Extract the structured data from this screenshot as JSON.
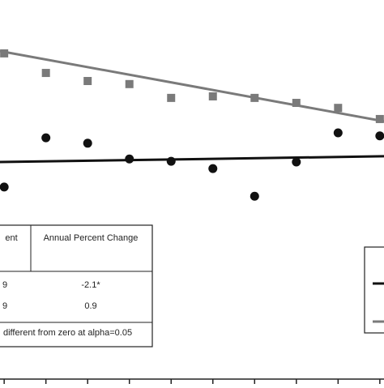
{
  "chart_data": {
    "type": "scatter",
    "x": [
      1,
      2,
      3,
      4,
      5,
      6,
      7,
      8,
      9,
      10
    ],
    "xlim": [
      0.9,
      10.1
    ],
    "xticks": [
      1,
      2,
      3,
      4,
      5,
      6,
      7,
      8,
      9,
      10
    ],
    "ylim": [
      0,
      100
    ],
    "series": [
      {
        "color": "#7a7a7a",
        "marker": "square",
        "values": [
          86.1,
          81.0,
          78.9,
          78.1,
          74.5,
          74.9,
          74.5,
          73.2,
          71.9,
          69.0
        ],
        "trend_x": [
          0.9,
          10.1
        ],
        "trend": [
          86.7,
          68.4
        ]
      },
      {
        "color": "#111111",
        "marker": "circle",
        "values": [
          51.3,
          64.1,
          62.7,
          58.6,
          58.0,
          56.1,
          48.9,
          57.8,
          65.4,
          64.6
        ],
        "trend_x": [
          0.9,
          10.1
        ],
        "trend": [
          57.8,
          59.3
        ]
      }
    ]
  },
  "table": {
    "header": [
      "ent",
      "Annual Percent Change"
    ],
    "rows": [
      [
        "9",
        "-2.1*"
      ],
      [
        "9",
        "0.9"
      ]
    ],
    "footnote": "different from zero at alpha=0.05"
  }
}
